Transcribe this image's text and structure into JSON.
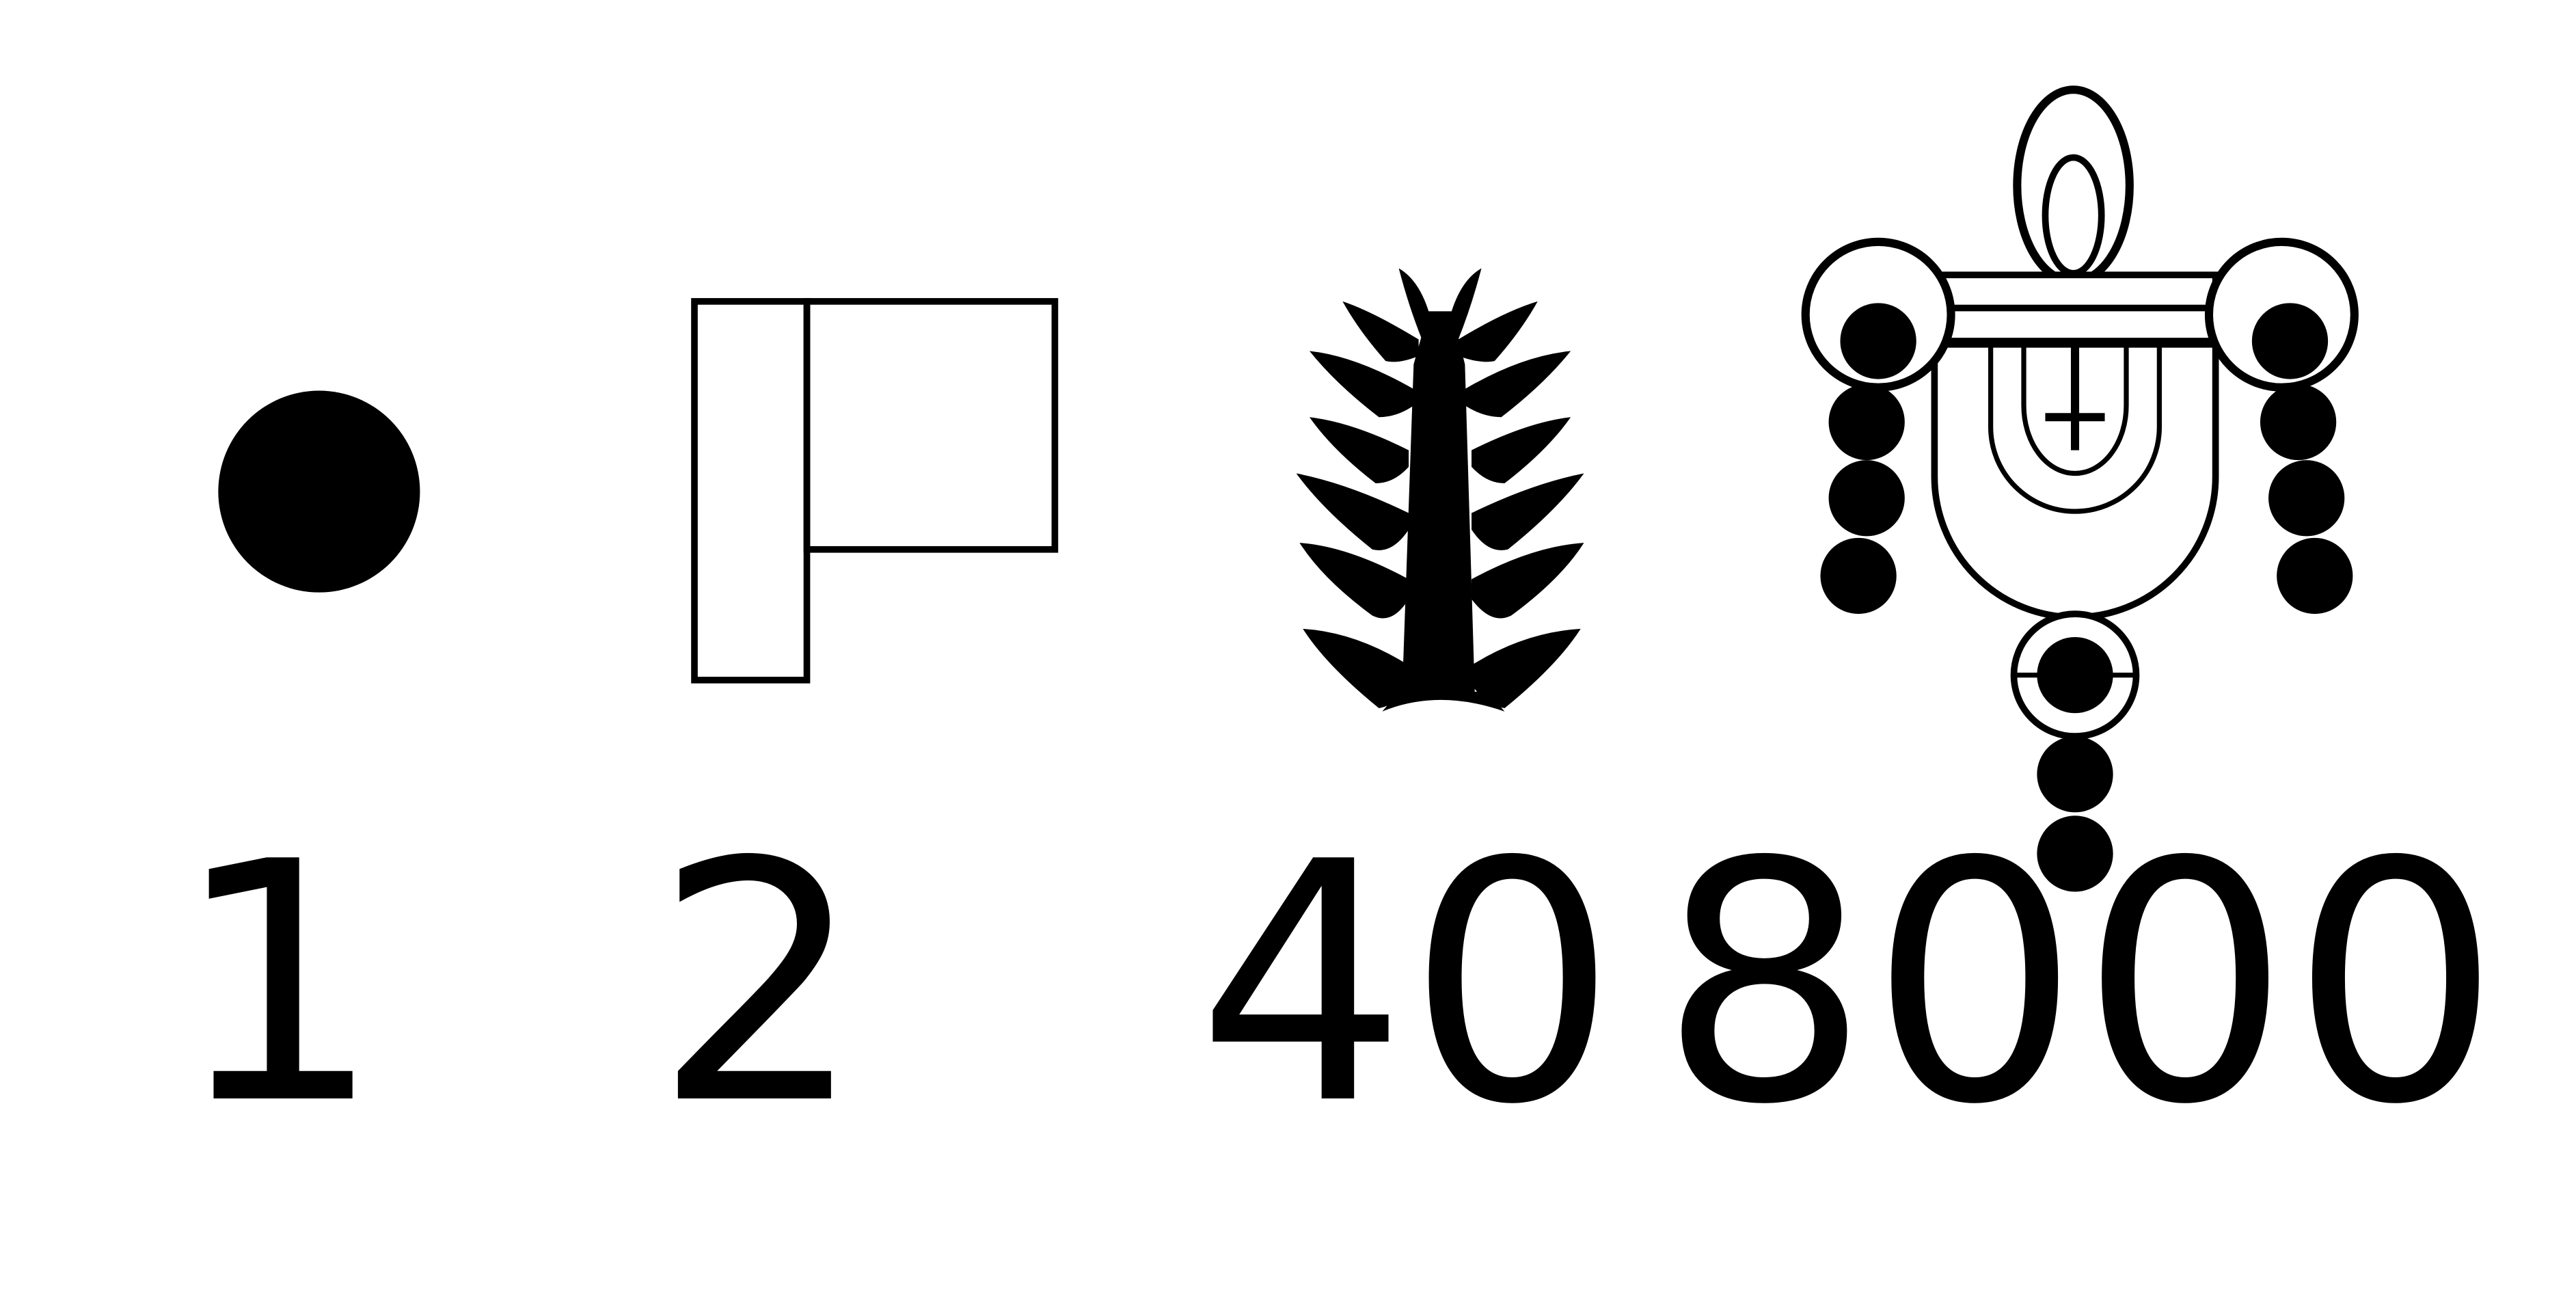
{
  "glyphs": [
    {
      "value": "1",
      "icon": "dot-glyph-icon"
    },
    {
      "value": "2",
      "icon": "stroke-glyph-icon"
    },
    {
      "value": "40",
      "icon": "palm-branch-glyph-icon"
    },
    {
      "value": "8000",
      "icon": "bag-glyph-icon"
    }
  ],
  "colors": {
    "ink": "#000000",
    "paper": "#ffffff"
  }
}
